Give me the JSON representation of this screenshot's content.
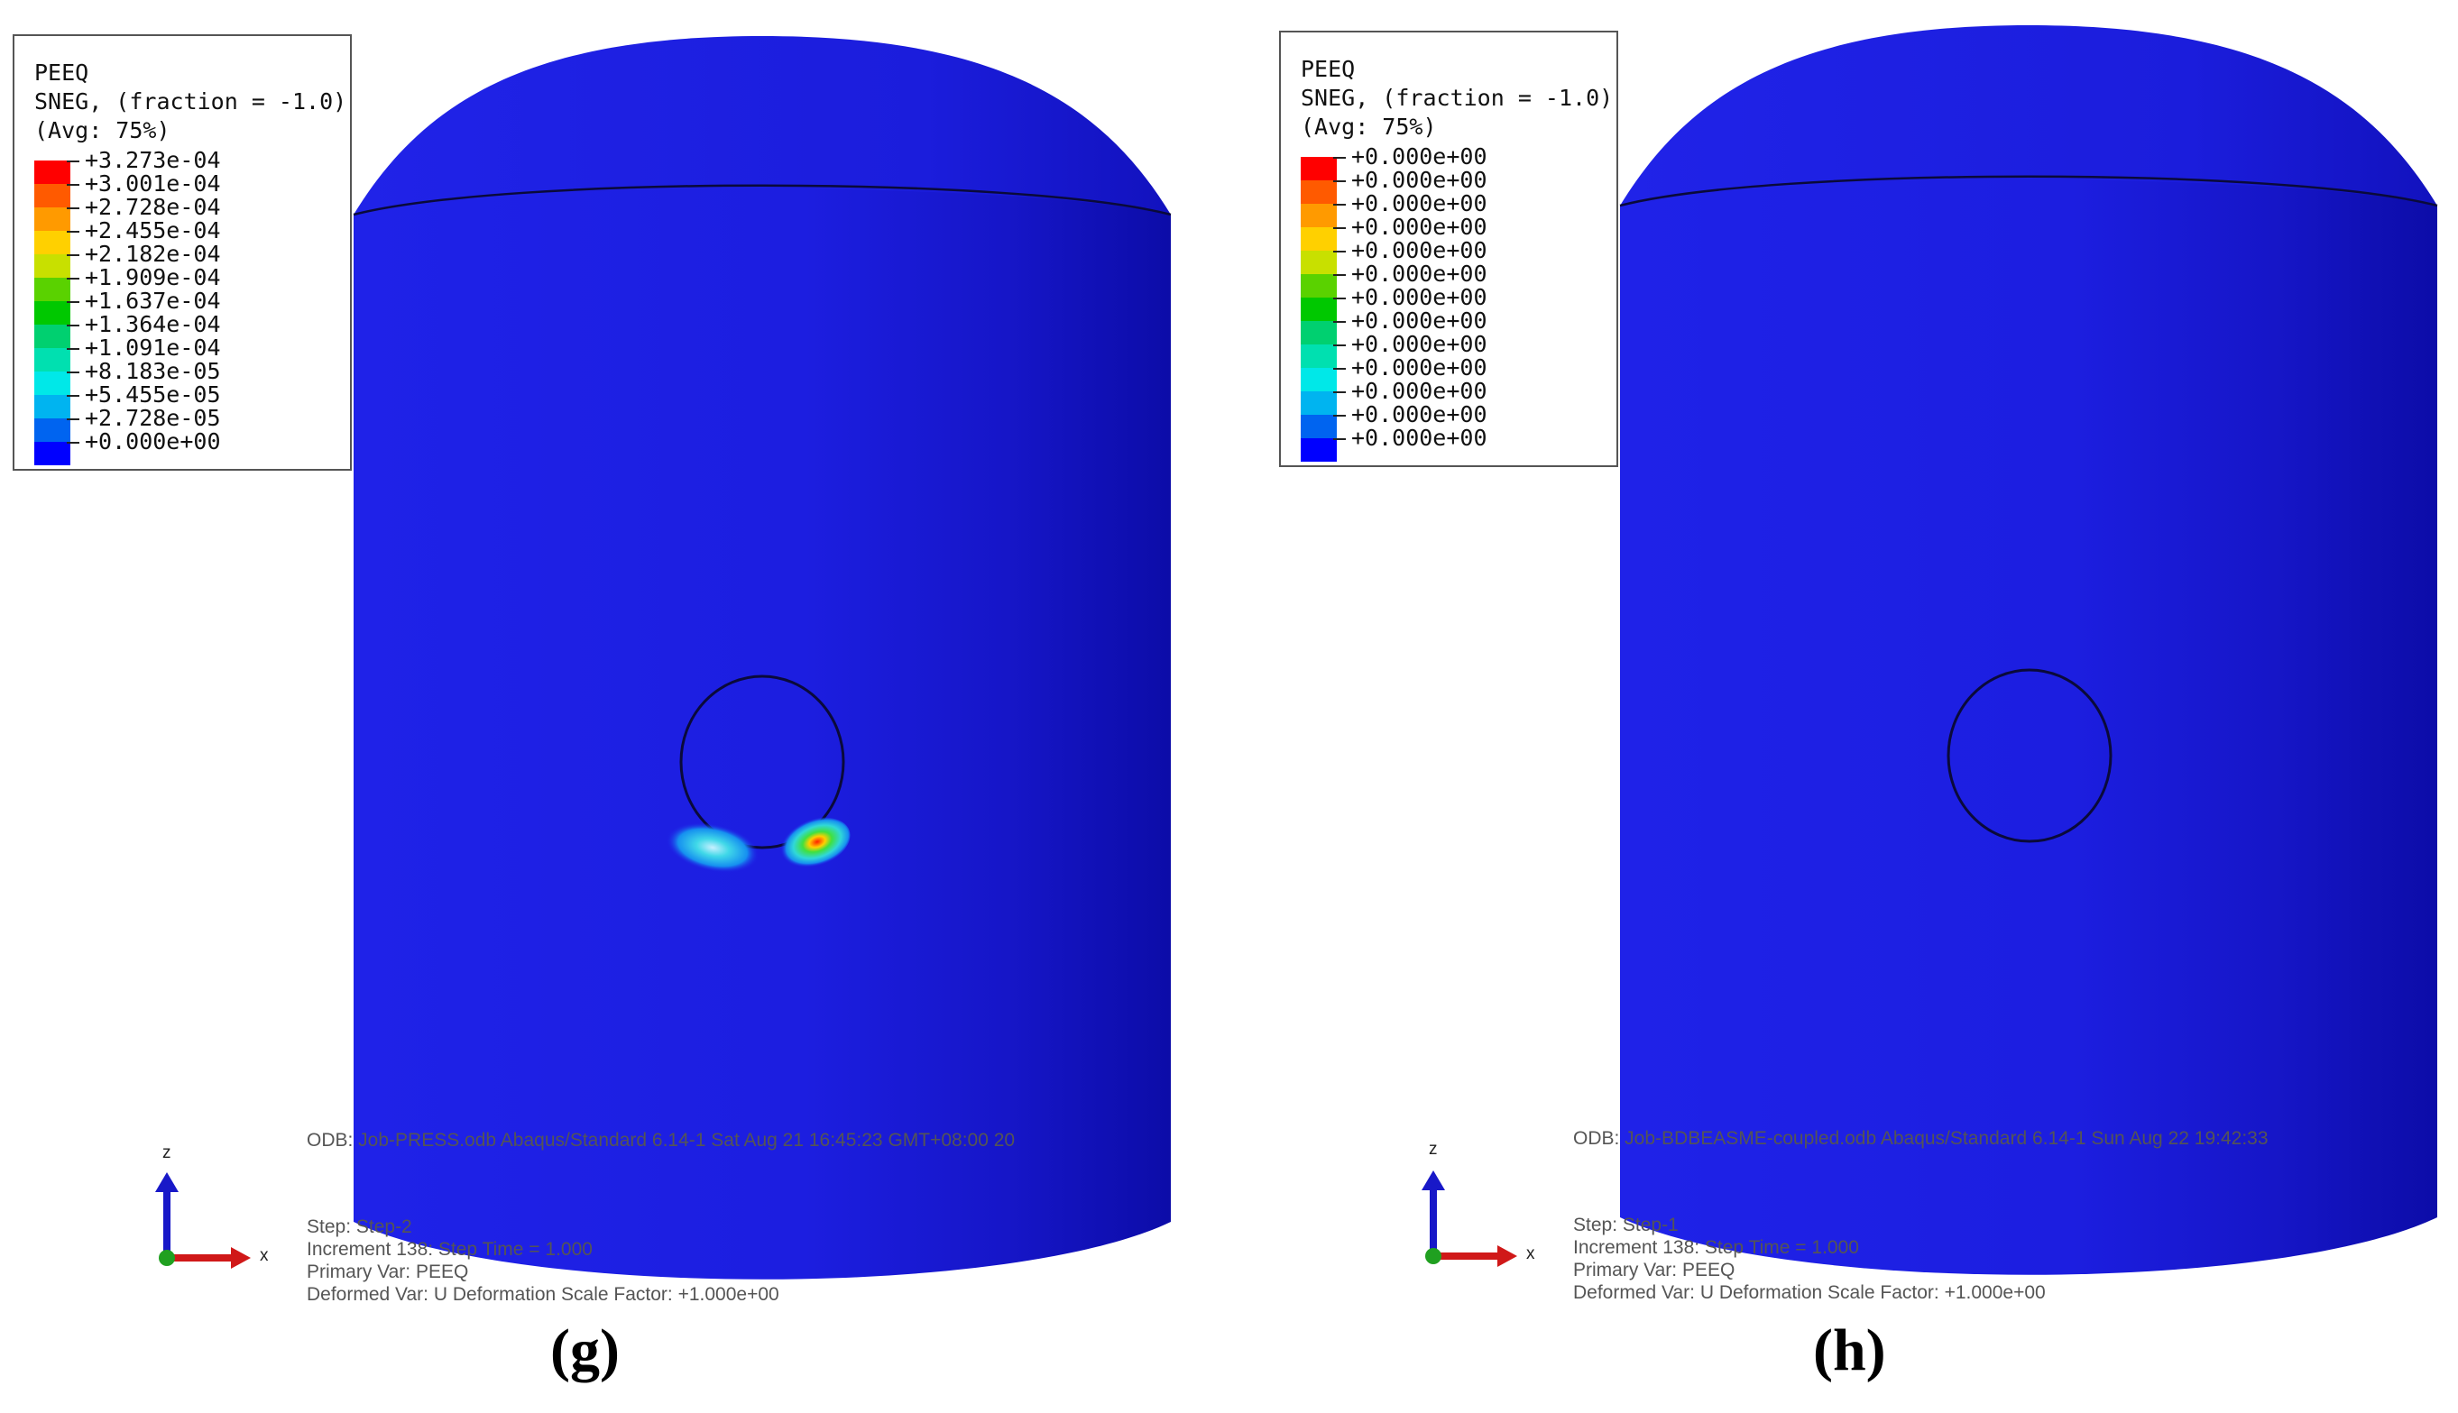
{
  "panels": [
    {
      "id": "g",
      "legend": {
        "title_lines": [
          "PEEQ",
          "SNEG, (fraction = -1.0)",
          "(Avg: 75%)"
        ],
        "values": [
          "+3.273e-04",
          "+3.001e-04",
          "+2.728e-04",
          "+2.455e-04",
          "+2.182e-04",
          "+1.909e-04",
          "+1.637e-04",
          "+1.364e-04",
          "+1.091e-04",
          "+8.183e-05",
          "+5.455e-05",
          "+2.728e-05",
          "+0.000e+00"
        ]
      },
      "info": {
        "odb_line": "ODB: Job-PRESS.odb    Abaqus/Standard 6.14-1    Sat Aug 21 16:45:23 GMT+08:00 20",
        "step_line": "Step: Step-2",
        "increment_line": "Increment    138: Step Time =    1.000",
        "primary_line": "Primary Var: PEEQ",
        "deformed_line": "Deformed Var: U   Deformation Scale Factor: +1.000e+00"
      },
      "axes": {
        "z": "z",
        "x": "x"
      },
      "caption": "(g)"
    },
    {
      "id": "h",
      "legend": {
        "title_lines": [
          "PEEQ",
          "SNEG, (fraction = -1.0)",
          "(Avg: 75%)"
        ],
        "values": [
          "+0.000e+00",
          "+0.000e+00",
          "+0.000e+00",
          "+0.000e+00",
          "+0.000e+00",
          "+0.000e+00",
          "+0.000e+00",
          "+0.000e+00",
          "+0.000e+00",
          "+0.000e+00",
          "+0.000e+00",
          "+0.000e+00",
          "+0.000e+00"
        ]
      },
      "info": {
        "odb_line": "ODB: Job-BDBEASME-coupled.odb    Abaqus/Standard 6.14-1    Sun Aug 22 19:42:33",
        "step_line": "Step: Step-1",
        "increment_line": "Increment    138: Step Time =    1.000",
        "primary_line": "Primary Var: PEEQ",
        "deformed_line": "Deformed Var: U   Deformation Scale Factor: +1.000e+00"
      },
      "axes": {
        "z": "z",
        "x": "x"
      },
      "caption": "(h)"
    }
  ],
  "legend_colors": [
    "#ff0000",
    "#ff5a00",
    "#ff9a00",
    "#ffd000",
    "#c8e000",
    "#5ad200",
    "#00c800",
    "#00d070",
    "#00e0b0",
    "#00e8e8",
    "#00b4f0",
    "#0064f0",
    "#0000ff"
  ],
  "colors": {
    "vessel_blue": "#1f1fe6",
    "vessel_dark": "#1010b4",
    "outline": "#0a0a3a"
  }
}
